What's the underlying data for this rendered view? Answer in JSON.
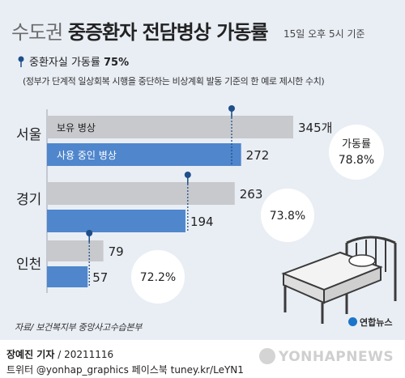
{
  "header": {
    "title_light": "수도권",
    "title_bold": "중증환자 전담병상 가동률",
    "subtitle": "15일 오후 5시 기준"
  },
  "legend": {
    "note_prefix": "중환자실 가동률 ",
    "note_value": "75%",
    "note_sub": "(정부가 단계적 일상회복 시행을 중단하는 비상계획 발동 기준의 한 예로 제시한 수치)"
  },
  "chart_data": {
    "type": "bar",
    "orientation": "horizontal",
    "categories": [
      "서울",
      "경기",
      "인천"
    ],
    "series": [
      {
        "name": "보유 병상",
        "values": [
          345,
          263,
          79
        ],
        "color": "#c8c9cc"
      },
      {
        "name": "사용 중인 병상",
        "values": [
          272,
          194,
          57
        ],
        "color": "#4f86cc"
      }
    ],
    "rates": [
      {
        "label": "가동률",
        "value": "78.8%"
      },
      {
        "label": "",
        "value": "73.8%"
      },
      {
        "label": "",
        "value": "72.2%"
      }
    ],
    "threshold": 75,
    "value_suffix": [
      "개",
      "",
      ""
    ],
    "xlim": [
      0,
      345
    ]
  },
  "footer": {
    "source": "자료/ 보건복지부 중앙사고수습본부",
    "logo": "연합뉴스",
    "byline_name": "장예진 기자",
    "byline_date": " / 20211116",
    "handles": "트위터 @yonhap_graphics  페이스북 tuney.kr/LeYN1",
    "watermark": "YONHAPNEWS"
  },
  "colors": {
    "background": "#e9eef5",
    "accent_pin": "#1f4f8a",
    "total_bar": "#c8c9cc",
    "used_bar": "#4f86cc"
  }
}
